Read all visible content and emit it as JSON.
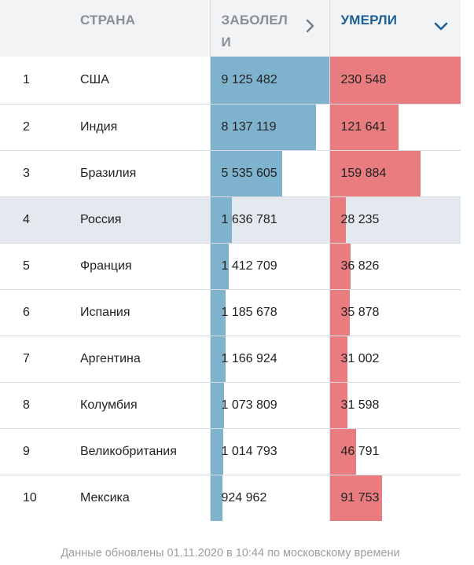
{
  "headers": {
    "rank": "",
    "country": "СТРАНА",
    "cases": "ЗАБОЛЕЛИ",
    "deaths": "УМЕРЛИ"
  },
  "header_icons": {
    "cases": "chevron-right-icon",
    "deaths": "chevron-down-icon"
  },
  "colors": {
    "cases_bar": "#7fb2cd",
    "deaths_bar": "#e87c7e",
    "highlight_row": "#e4e9f0",
    "active_header": "#1c5f96"
  },
  "highlighted_country": "Россия",
  "rows": [
    {
      "rank": "1",
      "country": "США",
      "cases": "9 125 482",
      "deaths": "230 548"
    },
    {
      "rank": "2",
      "country": "Индия",
      "cases": "8 137 119",
      "deaths": "121 641"
    },
    {
      "rank": "3",
      "country": "Бразилия",
      "cases": "5 535 605",
      "deaths": "159 884"
    },
    {
      "rank": "4",
      "country": "Россия",
      "cases": "1 636 781",
      "deaths": "28 235"
    },
    {
      "rank": "5",
      "country": "Франция",
      "cases": "1 412 709",
      "deaths": "36 826"
    },
    {
      "rank": "6",
      "country": "Испания",
      "cases": "1 185 678",
      "deaths": "35 878"
    },
    {
      "rank": "7",
      "country": "Аргентина",
      "cases": "1 166 924",
      "deaths": "31 002"
    },
    {
      "rank": "8",
      "country": "Колумбия",
      "cases": "1 073 809",
      "deaths": "31 598"
    },
    {
      "rank": "9",
      "country": "Великобритания",
      "cases": "1 014 793",
      "deaths": "46 791"
    },
    {
      "rank": "10",
      "country": "Мексика",
      "cases": "924 962",
      "deaths": "91 753"
    }
  ],
  "footer": "Данные обновлены 01.11.2020 в 10:44 по московскому времени"
}
